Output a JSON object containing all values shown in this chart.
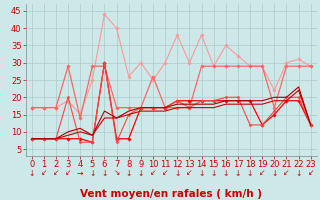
{
  "x": [
    0,
    1,
    2,
    3,
    4,
    5,
    6,
    7,
    8,
    9,
    10,
    11,
    12,
    13,
    14,
    15,
    16,
    17,
    18,
    19,
    20,
    21,
    22,
    23
  ],
  "series": [
    {
      "color": "#ff9999",
      "lw": 0.8,
      "marker": "D",
      "ms": 1.8,
      "y": [
        17,
        17,
        17,
        19,
        15,
        25,
        44,
        40,
        26,
        30,
        25,
        30,
        38,
        30,
        38,
        29,
        35,
        32,
        29,
        29,
        22,
        30,
        31,
        29
      ]
    },
    {
      "color": "#ff6666",
      "lw": 0.9,
      "marker": "D",
      "ms": 1.8,
      "y": [
        17,
        17,
        17,
        29,
        14,
        29,
        29,
        17,
        17,
        17,
        26,
        17,
        17,
        17,
        29,
        29,
        29,
        29,
        29,
        29,
        17,
        29,
        29,
        29
      ]
    },
    {
      "color": "#ff0000",
      "lw": 0.9,
      "marker": "D",
      "ms": 1.8,
      "y": [
        8,
        8,
        8,
        8,
        8,
        7,
        30,
        8,
        8,
        17,
        17,
        17,
        19,
        19,
        19,
        19,
        19,
        19,
        19,
        12,
        15,
        19,
        19,
        12
      ]
    },
    {
      "color": "#ff4444",
      "lw": 0.8,
      "marker": "D",
      "ms": 1.5,
      "y": [
        8,
        8,
        8,
        20,
        7,
        7,
        30,
        7,
        15,
        17,
        17,
        17,
        19,
        17,
        19,
        19,
        20,
        20,
        12,
        12,
        16,
        20,
        20,
        12
      ]
    },
    {
      "color": "#cc0000",
      "lw": 0.8,
      "marker": null,
      "ms": 0,
      "y": [
        8,
        8,
        8,
        9,
        10,
        9,
        14,
        14,
        15,
        16,
        16,
        16,
        17,
        17,
        17,
        17,
        18,
        18,
        18,
        18,
        19,
        19,
        22,
        12
      ]
    },
    {
      "color": "#aa0000",
      "lw": 0.8,
      "marker": null,
      "ms": 0,
      "y": [
        8,
        8,
        8,
        10,
        11,
        9,
        16,
        14,
        16,
        17,
        17,
        17,
        18,
        18,
        18,
        18,
        19,
        19,
        19,
        19,
        20,
        20,
        23,
        12
      ]
    }
  ],
  "xlabel": "Vent moyen/en rafales ( km/h )",
  "xlim": [
    -0.5,
    23.5
  ],
  "ylim": [
    3,
    47
  ],
  "yticks": [
    5,
    10,
    15,
    20,
    25,
    30,
    35,
    40,
    45
  ],
  "xticks": [
    0,
    1,
    2,
    3,
    4,
    5,
    6,
    7,
    8,
    9,
    10,
    11,
    12,
    13,
    14,
    15,
    16,
    17,
    18,
    19,
    20,
    21,
    22,
    23
  ],
  "bg_color": "#cce8e8",
  "grid_color": "#aacccc",
  "xlabel_color": "#cc0000",
  "xlabel_fontsize": 7.5,
  "tick_color": "#cc0000",
  "tick_fontsize": 6,
  "fig_bg": "#cce8e8",
  "arrows": [
    "↓",
    "↙",
    "↙",
    "↙",
    "→",
    "↓",
    "↓",
    "↘",
    "↓",
    "↓",
    "↙",
    "↙",
    "↓",
    "↙",
    "↓",
    "↓",
    "↓",
    "↓",
    "↓",
    "↙",
    "↓",
    "↙",
    "↓",
    "↙"
  ]
}
